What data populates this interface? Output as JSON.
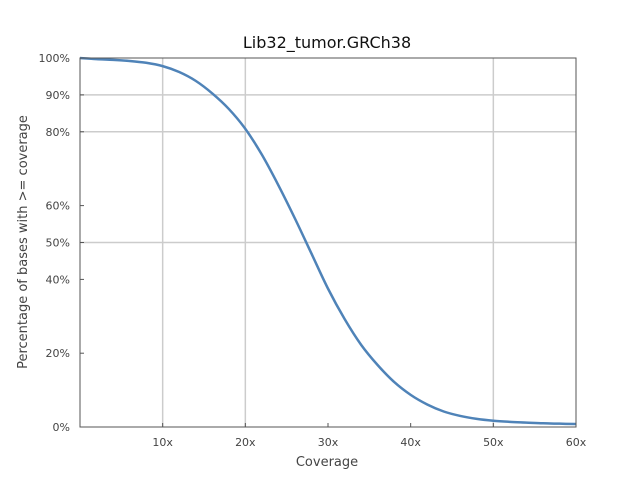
{
  "chart_data": {
    "type": "line",
    "title": "Lib32_tumor.GRCh38",
    "xlabel": "Coverage",
    "ylabel": "Percentage of bases with >= coverage",
    "xlim": [
      0,
      60
    ],
    "ylim": [
      0,
      100
    ],
    "x_ticks": [
      {
        "value": 10,
        "label": "10x"
      },
      {
        "value": 20,
        "label": "20x"
      },
      {
        "value": 30,
        "label": "30x"
      },
      {
        "value": 40,
        "label": "40x"
      },
      {
        "value": 50,
        "label": "50x"
      },
      {
        "value": 60,
        "label": "60x"
      }
    ],
    "x_grid": [
      10,
      20,
      50
    ],
    "y_ticks": [
      {
        "value": 0,
        "label": "0%"
      },
      {
        "value": 20,
        "label": "20%"
      },
      {
        "value": 40,
        "label": "40%"
      },
      {
        "value": 50,
        "label": "50%"
      },
      {
        "value": 60,
        "label": "60%"
      },
      {
        "value": 80,
        "label": "80%"
      },
      {
        "value": 90,
        "label": "90%"
      },
      {
        "value": 100,
        "label": "100%"
      }
    ],
    "y_grid": [
      50,
      80,
      90
    ],
    "grid": true,
    "line_color": "#4f83b8",
    "grid_color": "#cccccc",
    "series": [
      {
        "x": [
          0,
          2,
          4,
          6,
          8,
          10,
          12,
          14,
          16,
          18,
          20,
          22,
          24,
          26,
          28,
          30,
          32,
          34,
          36,
          38,
          40,
          42,
          44,
          46,
          48,
          50,
          52,
          54,
          56,
          58,
          60
        ],
        "values": [
          100,
          99.7,
          99.5,
          99.2,
          98.7,
          97.8,
          96.2,
          93.8,
          90.4,
          86.2,
          80.8,
          73.8,
          65.5,
          56.5,
          47,
          37.5,
          29.3,
          22.3,
          16.8,
          12.2,
          8.7,
          6.1,
          4.2,
          3,
          2.2,
          1.7,
          1.4,
          1.2,
          1,
          0.9,
          0.8
        ]
      }
    ]
  }
}
